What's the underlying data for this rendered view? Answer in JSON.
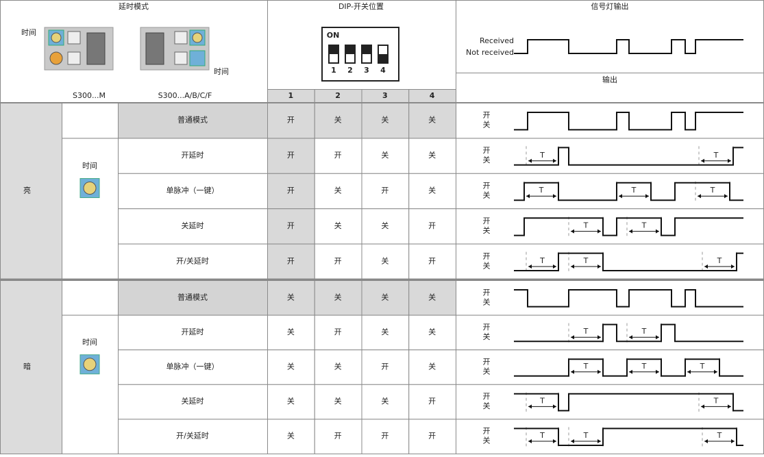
{
  "header": {
    "delay_mode": "延时模式",
    "dip_position": "DIP-开关位置",
    "signal_output": "信号灯输出"
  },
  "devices": [
    {
      "time_label": "时间",
      "model": "S300...M"
    },
    {
      "time_label": "时间",
      "model": "S300...A/B/C/F"
    }
  ],
  "dip_switch": {
    "on_label": "ON",
    "numbers": [
      "1",
      "2",
      "3",
      "4"
    ]
  },
  "signal": {
    "received": "Received",
    "not_received": "Not received",
    "output": "输出"
  },
  "columns": [
    "1",
    "2",
    "3",
    "4"
  ],
  "levels": {
    "on": "开",
    "off": "关"
  },
  "period_label": "T",
  "groups": [
    {
      "name": "亮",
      "time_label": "时间",
      "rows": [
        {
          "mode": "普通模式",
          "switches": [
            "开",
            "关",
            "关",
            "关"
          ]
        },
        {
          "mode": "开延时",
          "switches": [
            "开",
            "开",
            "关",
            "关"
          ]
        },
        {
          "mode": "单脉冲（一键）",
          "switches": [
            "开",
            "关",
            "开",
            "关"
          ]
        },
        {
          "mode": "关延时",
          "switches": [
            "开",
            "关",
            "关",
            "开"
          ]
        },
        {
          "mode": "开/关延时",
          "switches": [
            "开",
            "开",
            "关",
            "开"
          ]
        }
      ]
    },
    {
      "name": "暗",
      "time_label": "时间",
      "rows": [
        {
          "mode": "普通模式",
          "switches": [
            "关",
            "关",
            "关",
            "关"
          ]
        },
        {
          "mode": "开延时",
          "switches": [
            "关",
            "开",
            "关",
            "关"
          ]
        },
        {
          "mode": "单脉冲（一键）",
          "switches": [
            "关",
            "关",
            "开",
            "关"
          ]
        },
        {
          "mode": "关延时",
          "switches": [
            "关",
            "关",
            "关",
            "开"
          ]
        },
        {
          "mode": "开/关延时",
          "switches": [
            "关",
            "开",
            "开",
            "开"
          ]
        }
      ]
    }
  ]
}
